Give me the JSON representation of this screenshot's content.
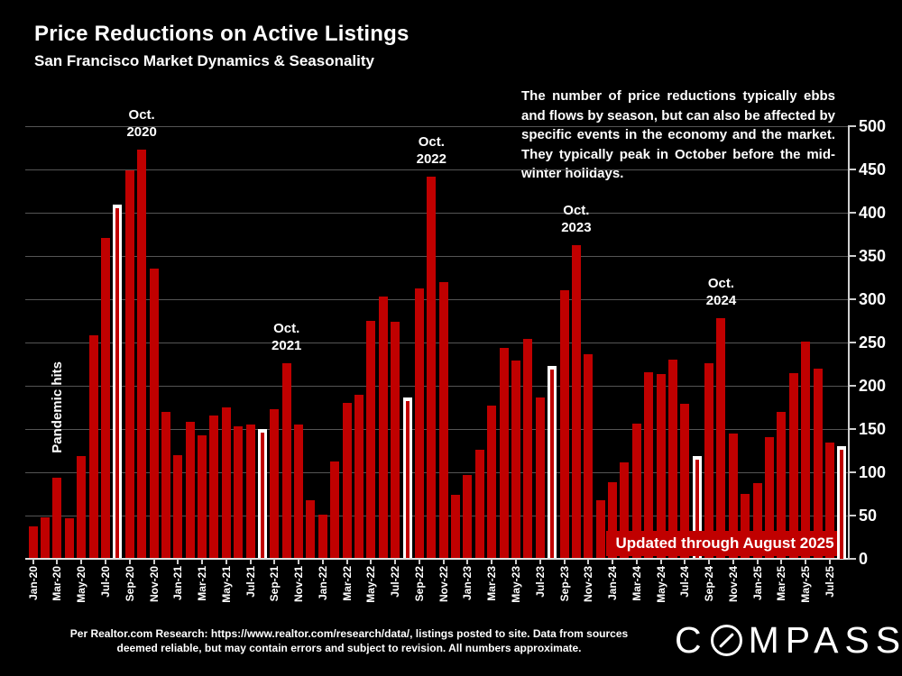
{
  "title": "Price Reductions on Active Listings",
  "subtitle": "San Francisco Market Dynamics & Seasonality",
  "commentary": "The number of price reductions typically ebbs and flows by season, but can also be affected by specific events in the economy and the market. They typically peak in October before the mid-winter holidays.",
  "banner": "Updated through August 2025",
  "footer": "Per Realtor.com Research:  https://www.realtor.com/research/data/, listings posted to site. Data from sources deemed reliable, but may contain errors and subject to revision. All numbers approximate.",
  "logo": {
    "left": "C",
    "right": "MPASS",
    "name": "COMPASS"
  },
  "colors": {
    "background": "#000000",
    "bar_red": "#c00000",
    "highlight_bar": "#ffffff",
    "banner_bg": "#c00000",
    "grid": "#555555",
    "axis": "#cfcfcf",
    "text": "#ffffff"
  },
  "chart_data": {
    "type": "bar",
    "title": "Price Reductions on Active Listings",
    "xlabel": "",
    "ylabel": "",
    "ylim": [
      0,
      500
    ],
    "yticks": [
      0,
      50,
      100,
      150,
      200,
      250,
      300,
      350,
      400,
      450,
      500
    ],
    "grid": true,
    "legend": false,
    "x": [
      "Jan-20",
      "Feb-20",
      "Mar-20",
      "Apr-20",
      "May-20",
      "Jun-20",
      "Jul-20",
      "Aug-20",
      "Sep-20",
      "Oct-20",
      "Nov-20",
      "Dec-20",
      "Jan-21",
      "Feb-21",
      "Mar-21",
      "Apr-21",
      "May-21",
      "Jun-21",
      "Jul-21",
      "Aug-21",
      "Sep-21",
      "Oct-21",
      "Nov-21",
      "Dec-21",
      "Jan-22",
      "Feb-22",
      "Mar-22",
      "Apr-22",
      "May-22",
      "Jun-22",
      "Jul-22",
      "Aug-22",
      "Sep-22",
      "Oct-22",
      "Nov-22",
      "Dec-22",
      "Jan-23",
      "Feb-23",
      "Mar-23",
      "Apr-23",
      "May-23",
      "Jun-23",
      "Jul-23",
      "Aug-23",
      "Sep-23",
      "Oct-23",
      "Nov-23",
      "Dec-23",
      "Jan-24",
      "Feb-24",
      "Mar-24",
      "Apr-24",
      "May-24",
      "Jun-24",
      "Jul-24",
      "Aug-24",
      "Sep-24",
      "Oct-24",
      "Nov-24",
      "Dec-24",
      "Jan-25",
      "Feb-25",
      "Mar-25",
      "Apr-25",
      "May-25",
      "Jun-25",
      "Jul-25",
      "Aug-25"
    ],
    "values": [
      38,
      48,
      94,
      47,
      119,
      258,
      371,
      409,
      449,
      473,
      335,
      170,
      120,
      158,
      143,
      166,
      175,
      153,
      155,
      150,
      173,
      226,
      155,
      68,
      51,
      112,
      180,
      190,
      275,
      303,
      274,
      186,
      312,
      442,
      320,
      74,
      97,
      126,
      177,
      244,
      229,
      254,
      186,
      223,
      310,
      363,
      236,
      68,
      89,
      111,
      156,
      216,
      214,
      230,
      179,
      119,
      226,
      278,
      145,
      75,
      87,
      141,
      170,
      215,
      251,
      220,
      134,
      130
    ],
    "highlight_x": [
      "Aug-20",
      "Aug-21",
      "Aug-22",
      "Aug-23",
      "Aug-24",
      "Aug-25"
    ],
    "xtick_shown_every": 2,
    "annotations": [
      {
        "month": "Mar-20",
        "lines": [
          "Pandemic hits"
        ],
        "vertical": true
      },
      {
        "month": "Oct-20",
        "lines": [
          "Oct.",
          "2020"
        ]
      },
      {
        "month": "Oct-21",
        "lines": [
          "Oct.",
          "2021"
        ]
      },
      {
        "month": "Oct-22",
        "lines": [
          "Oct.",
          "2022"
        ]
      },
      {
        "month": "Oct-23",
        "lines": [
          "Oct.",
          "2023"
        ]
      },
      {
        "month": "Oct-24",
        "lines": [
          "Oct.",
          "2024"
        ]
      }
    ]
  }
}
